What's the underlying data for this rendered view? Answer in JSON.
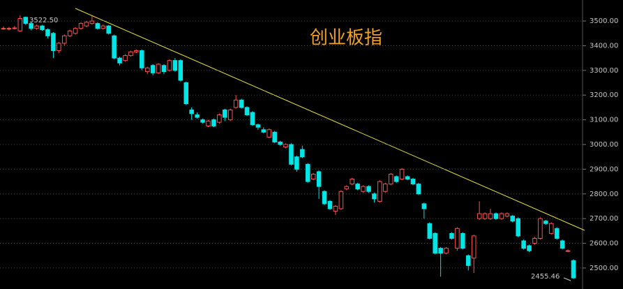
{
  "chart_data": {
    "type": "candlestick",
    "title": "创业板指",
    "annotations": [
      "3522.50",
      "2455.46"
    ],
    "open": [
      3470,
      3468,
      3470,
      3460,
      3515,
      3490,
      3470,
      3480,
      3465,
      3450,
      3380,
      3410,
      3440,
      3450,
      3470,
      3480,
      3490,
      3490,
      3470,
      3480,
      3440,
      3350,
      3340,
      3360,
      3375,
      3380,
      3295,
      3320,
      3290,
      3320,
      3300,
      3340,
      3340,
      3250,
      3140,
      3120,
      3100,
      3075,
      3100,
      3090,
      3140,
      3100,
      3150,
      3180,
      3150,
      3130,
      3080,
      3060,
      3030,
      3050,
      3010,
      2990,
      3000,
      2950,
      2980,
      2920,
      2860,
      2890,
      2810,
      2770,
      2730,
      2740,
      2820,
      2840,
      2840,
      2810,
      2830,
      2800,
      2770,
      2810,
      2840,
      2870,
      2860,
      2870,
      2860,
      2840,
      2760,
      2680,
      2640,
      2580,
      2560,
      2640,
      2580,
      2640,
      2550,
      2540,
      2700,
      2700,
      2700,
      2720,
      2700,
      2710,
      2710,
      2700,
      2610,
      2590,
      2600,
      2620,
      2690,
      2640,
      2660,
      2610,
      2570,
      2530
    ],
    "high": [
      3478,
      3476,
      3480,
      3522.5,
      3518,
      3495,
      3486,
      3484,
      3470,
      3455,
      3415,
      3445,
      3465,
      3475,
      3495,
      3500,
      3520,
      3495,
      3486,
      3484,
      3445,
      3355,
      3365,
      3380,
      3385,
      3385,
      3315,
      3325,
      3330,
      3325,
      3345,
      3350,
      3345,
      3255,
      3150,
      3130,
      3105,
      3100,
      3105,
      3125,
      3145,
      3145,
      3200,
      3185,
      3155,
      3135,
      3085,
      3070,
      3065,
      3055,
      3015,
      3005,
      3005,
      2955,
      2995,
      2925,
      2885,
      2895,
      2815,
      2775,
      2755,
      2815,
      2835,
      2865,
      2845,
      2835,
      2835,
      2805,
      2855,
      2845,
      2885,
      2875,
      2905,
      2875,
      2865,
      2845,
      2765,
      2685,
      2645,
      2585,
      2585,
      2645,
      2665,
      2645,
      2555,
      2635,
      2770,
      2725,
      2740,
      2725,
      2725,
      2725,
      2715,
      2705,
      2615,
      2595,
      2625,
      2705,
      2695,
      2685,
      2665,
      2615,
      2575,
      2535
    ],
    "low": [
      3465,
      3462,
      3466,
      3455,
      3485,
      3462,
      3465,
      3460,
      3430,
      3350,
      3370,
      3400,
      3435,
      3445,
      3465,
      3475,
      3485,
      3465,
      3465,
      3445,
      3345,
      3320,
      3335,
      3355,
      3370,
      3300,
      3285,
      3280,
      3285,
      3285,
      3295,
      3295,
      3255,
      3160,
      3100,
      3105,
      3085,
      3070,
      3070,
      3085,
      3095,
      3095,
      3145,
      3145,
      3115,
      3075,
      3060,
      3045,
      3025,
      3005,
      2995,
      2985,
      2915,
      2890,
      2945,
      2845,
      2855,
      2780,
      2755,
      2735,
      2715,
      2735,
      2815,
      2835,
      2815,
      2805,
      2805,
      2765,
      2765,
      2805,
      2835,
      2845,
      2855,
      2855,
      2835,
      2795,
      2700,
      2615,
      2555,
      2465,
      2555,
      2615,
      2570,
      2575,
      2490,
      2480,
      2695,
      2695,
      2695,
      2695,
      2695,
      2705,
      2685,
      2625,
      2575,
      2565,
      2595,
      2615,
      2675,
      2635,
      2615,
      2575,
      2565,
      2455.46
    ],
    "close": [
      3470,
      3470,
      3472,
      3510,
      3490,
      3470,
      3480,
      3465,
      3440,
      3380,
      3410,
      3440,
      3460,
      3470,
      3490,
      3495,
      3500,
      3470,
      3480,
      3450,
      3350,
      3330,
      3360,
      3375,
      3380,
      3310,
      3310,
      3290,
      3325,
      3295,
      3340,
      3300,
      3260,
      3165,
      3125,
      3110,
      3090,
      3095,
      3075,
      3120,
      3110,
      3140,
      3180,
      3150,
      3120,
      3080,
      3070,
      3050,
      3060,
      3010,
      3000,
      3000,
      2920,
      2900,
      2950,
      2850,
      2880,
      2830,
      2760,
      2740,
      2750,
      2810,
      2830,
      2860,
      2820,
      2830,
      2810,
      2780,
      2850,
      2840,
      2880,
      2850,
      2900,
      2860,
      2840,
      2800,
      2740,
      2620,
      2560,
      2560,
      2580,
      2620,
      2660,
      2580,
      2510,
      2630,
      2720,
      2720,
      2720,
      2700,
      2720,
      2720,
      2690,
      2630,
      2580,
      2570,
      2620,
      2700,
      2680,
      2680,
      2620,
      2580,
      2570,
      2460
    ],
    "up_color": "#ff5050",
    "down_color": "#00e5e5",
    "ylim": [
      2415,
      3585
    ],
    "yticks": [
      {
        "value": 2500,
        "label": "2500.00"
      },
      {
        "value": 2600,
        "label": "2600.00"
      },
      {
        "value": 2700,
        "label": "2700.00"
      },
      {
        "value": 2800,
        "label": "2800.00"
      },
      {
        "value": 2900,
        "label": "2900.00"
      },
      {
        "value": 3000,
        "label": "3000.00"
      },
      {
        "value": 3100,
        "label": "3100.00"
      },
      {
        "value": 3200,
        "label": "3200.00"
      },
      {
        "value": 3300,
        "label": "3300.00"
      },
      {
        "value": 3400,
        "label": "3400.00"
      },
      {
        "value": 3500,
        "label": "3500.00"
      }
    ],
    "grid": true
  }
}
